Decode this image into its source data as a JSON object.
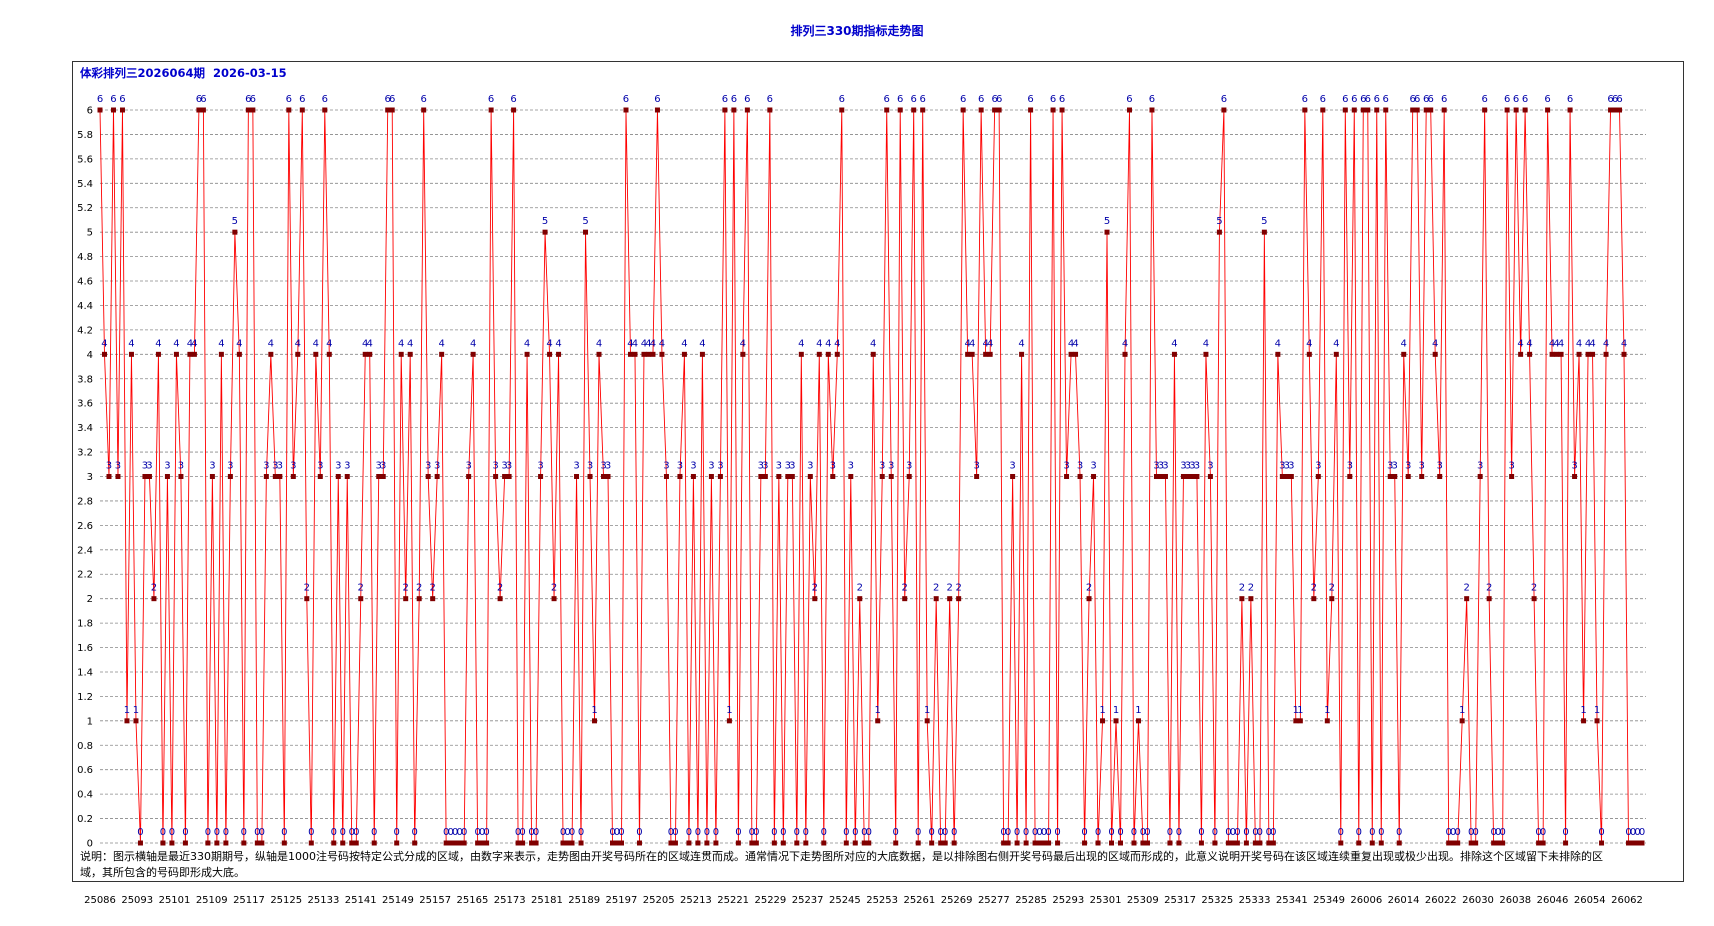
{
  "page": {
    "title": "排列三330期指标走势图",
    "subtitle": "体彩排列三2026064期  2026-03-15",
    "note": "说明：图示横轴是最近330期期号，纵轴是1000注号码按特定公式分成的区域，由数字来表示，走势图由开奖号码所在的区域连贯而成。通常情况下走势图所对应的大底数据，是以排除图右侧开奖号码最后出现的区域而形成的，此意义说明开奖号码在该区域连续重复出现或极少出现。排除这个区域留下未排除的区域，其所包含的号码即形成大底。"
  },
  "colors": {
    "line": "#ff0000",
    "marker": "#800000",
    "value_label": "#0000aa",
    "grid": "#888888",
    "title": "#0000cc"
  },
  "chart_data": {
    "type": "line",
    "title": "排列三330期指标走势图",
    "xlabel": "",
    "ylabel": "",
    "ylim": [
      0,
      6
    ],
    "y_ticks": [
      0,
      0.2,
      0.4,
      0.6,
      0.8,
      1,
      1.2,
      1.4,
      1.6,
      1.8,
      2,
      2.2,
      2.4,
      2.6,
      2.8,
      3,
      3.2,
      3.4,
      3.6,
      3.8,
      4,
      4.2,
      4.4,
      4.6,
      4.8,
      5,
      5.2,
      5.4,
      5.6,
      5.8,
      6
    ],
    "x_tick_labels": [
      "25086",
      "25093",
      "25101",
      "25109",
      "25117",
      "25125",
      "25133",
      "25141",
      "25149",
      "25157",
      "25165",
      "25173",
      "25181",
      "25189",
      "25197",
      "25205",
      "25213",
      "25221",
      "25229",
      "25237",
      "25245",
      "25253",
      "25261",
      "25269",
      "25277",
      "25285",
      "25293",
      "25301",
      "25309",
      "25317",
      "25325",
      "25333",
      "25341",
      "25349",
      "26006",
      "26014",
      "26022",
      "26030",
      "26038",
      "26046",
      "26054",
      "26062"
    ],
    "grid": true,
    "series": [
      {
        "values": [
          6,
          4,
          3,
          6,
          3,
          6,
          1,
          4,
          1,
          0,
          3,
          3,
          2,
          4,
          0,
          3,
          0,
          4,
          3,
          0,
          4,
          4,
          6,
          6,
          0,
          3,
          0,
          4,
          0,
          3,
          5,
          4,
          0,
          6,
          6,
          0,
          0,
          3,
          4,
          3,
          3,
          0,
          6,
          3,
          4,
          6,
          2,
          0,
          4,
          3,
          6,
          4,
          0,
          3,
          0,
          3,
          0,
          0,
          2,
          4,
          4,
          0,
          3,
          3,
          6,
          6,
          0,
          4,
          2,
          4,
          0,
          2,
          6,
          3,
          2,
          3,
          4,
          0,
          0,
          0,
          0,
          0,
          3,
          4,
          0,
          0,
          0,
          6,
          3,
          2,
          3,
          3,
          6,
          0,
          0,
          4,
          0,
          0,
          3,
          5,
          4,
          2,
          4,
          0,
          0,
          0,
          3,
          0,
          5,
          3,
          1,
          4,
          3,
          3,
          0,
          0,
          0,
          6,
          4,
          4,
          0,
          4,
          4,
          4,
          6,
          4,
          3,
          0,
          0,
          3,
          4,
          0,
          3,
          0,
          4,
          0,
          3,
          0,
          3,
          6,
          1,
          6,
          0,
          4,
          6,
          0,
          0,
          3,
          3,
          6,
          0,
          3,
          0,
          3,
          3,
          0,
          4,
          0,
          3,
          2,
          4,
          0,
          4,
          3,
          4,
          6,
          0,
          3,
          0,
          2,
          0,
          0,
          4,
          1,
          3,
          6,
          3,
          0,
          6,
          2,
          3,
          6,
          0,
          6,
          1,
          0,
          2,
          0,
          0,
          2,
          0,
          2,
          6,
          4,
          4,
          3,
          6,
          4,
          4,
          6,
          6,
          0,
          0,
          3,
          0,
          4,
          0,
          6,
          0,
          0,
          0,
          0,
          6,
          0,
          6,
          3,
          4,
          4,
          3,
          0,
          2,
          3,
          0,
          1,
          5,
          0,
          1,
          0,
          4,
          6,
          0,
          1,
          0,
          0,
          6,
          3,
          3,
          3,
          0,
          4,
          0,
          3,
          3,
          3,
          3,
          0,
          4,
          3,
          0,
          5,
          6,
          0,
          0,
          0,
          2,
          0,
          2,
          0,
          0,
          5,
          0,
          0,
          4,
          3,
          3,
          3,
          1,
          1,
          6,
          4,
          2,
          3,
          6,
          1,
          2,
          4,
          0,
          6,
          3,
          6,
          0,
          6,
          6,
          0,
          6,
          0,
          6,
          3,
          3,
          0,
          4,
          3,
          6,
          6,
          3,
          6,
          6,
          4,
          3,
          6,
          0,
          0,
          0,
          1,
          2,
          0,
          0,
          3,
          6,
          2,
          0,
          0,
          0,
          6,
          3,
          6,
          4,
          6,
          4,
          2,
          0,
          0,
          6,
          4,
          4,
          4,
          0,
          6,
          3,
          4,
          1,
          4,
          4,
          1,
          0,
          4,
          6,
          6,
          6,
          4,
          0,
          0,
          0,
          0
        ]
      }
    ]
  }
}
